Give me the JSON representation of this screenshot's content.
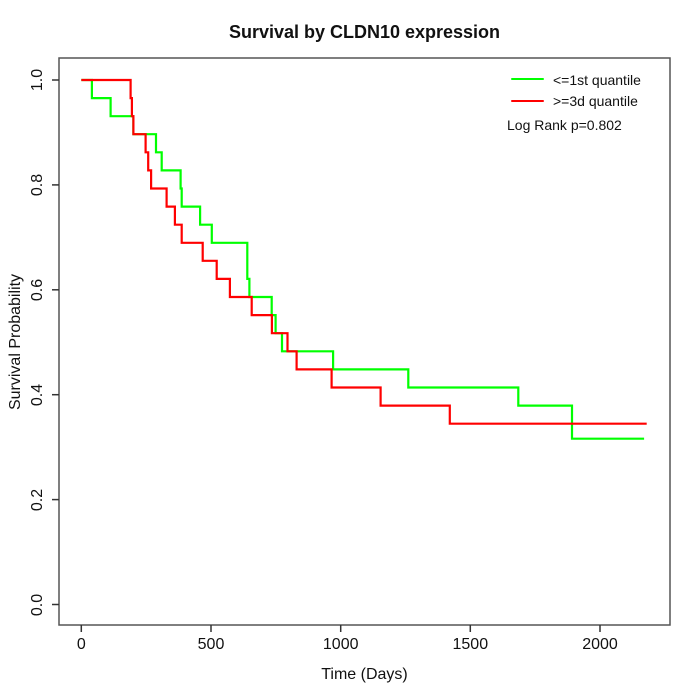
{
  "title": "Survival by CLDN10 expression",
  "axes": {
    "x": {
      "label": "Time (Days)",
      "tick_values": [
        0,
        500,
        1000,
        1500,
        2000
      ],
      "tick_labels": [
        "0",
        "500",
        "1000",
        "1500",
        "2000"
      ]
    },
    "y": {
      "label": "Survival Probability",
      "tick_values": [
        0.0,
        0.2,
        0.4,
        0.6,
        0.8,
        1.0
      ],
      "tick_labels": [
        "0.0",
        "0.2",
        "0.4",
        "0.6",
        "0.8",
        "1.0"
      ]
    }
  },
  "legend": {
    "items": [
      {
        "label": "<=1st quantile",
        "color": "#00ff00"
      },
      {
        "label": ">=3d quantile",
        "color": "#ff0000"
      }
    ],
    "note": "Log Rank p=0.802"
  },
  "chart_data": {
    "type": "line",
    "subtype": "kaplan-meier-step",
    "title": "Survival by CLDN10 expression",
    "xlabel": "Time (Days)",
    "ylabel": "Survival Probability",
    "xlim": [
      -87,
      2267
    ],
    "ylim": [
      -0.04,
      1.04
    ],
    "grid": false,
    "legend_position": "top-right",
    "annotation": "Log Rank p=0.802",
    "series": [
      {
        "name": "<=1st quantile",
        "color": "#00ff00",
        "steps": [
          [
            0,
            1.0
          ],
          [
            41,
            0.9655
          ],
          [
            113,
            0.931
          ],
          [
            201,
            0.8966
          ],
          [
            288,
            0.8621
          ],
          [
            310,
            0.8276
          ],
          [
            383,
            0.7931
          ],
          [
            387,
            0.7586
          ],
          [
            458,
            0.7241
          ],
          [
            503,
            0.6897
          ],
          [
            640,
            0.6207
          ],
          [
            648,
            0.5862
          ],
          [
            734,
            0.5517
          ],
          [
            749,
            0.5172
          ],
          [
            774,
            0.4828
          ],
          [
            971,
            0.4483
          ],
          [
            1261,
            0.4138
          ],
          [
            1685,
            0.3793
          ],
          [
            1892,
            0.3161
          ],
          [
            2170,
            0.3161
          ]
        ]
      },
      {
        "name": ">=3d quantile",
        "color": "#ff0000",
        "steps": [
          [
            0,
            1.0
          ],
          [
            190,
            0.9655
          ],
          [
            195,
            0.931
          ],
          [
            201,
            0.8966
          ],
          [
            248,
            0.8621
          ],
          [
            258,
            0.8276
          ],
          [
            269,
            0.7931
          ],
          [
            329,
            0.7586
          ],
          [
            361,
            0.7241
          ],
          [
            387,
            0.6897
          ],
          [
            468,
            0.6552
          ],
          [
            522,
            0.6207
          ],
          [
            573,
            0.5862
          ],
          [
            657,
            0.5517
          ],
          [
            735,
            0.5172
          ],
          [
            795,
            0.4828
          ],
          [
            830,
            0.4483
          ],
          [
            965,
            0.4138
          ],
          [
            1154,
            0.3793
          ],
          [
            1421,
            0.3448
          ],
          [
            2180,
            0.3448
          ]
        ]
      }
    ]
  }
}
